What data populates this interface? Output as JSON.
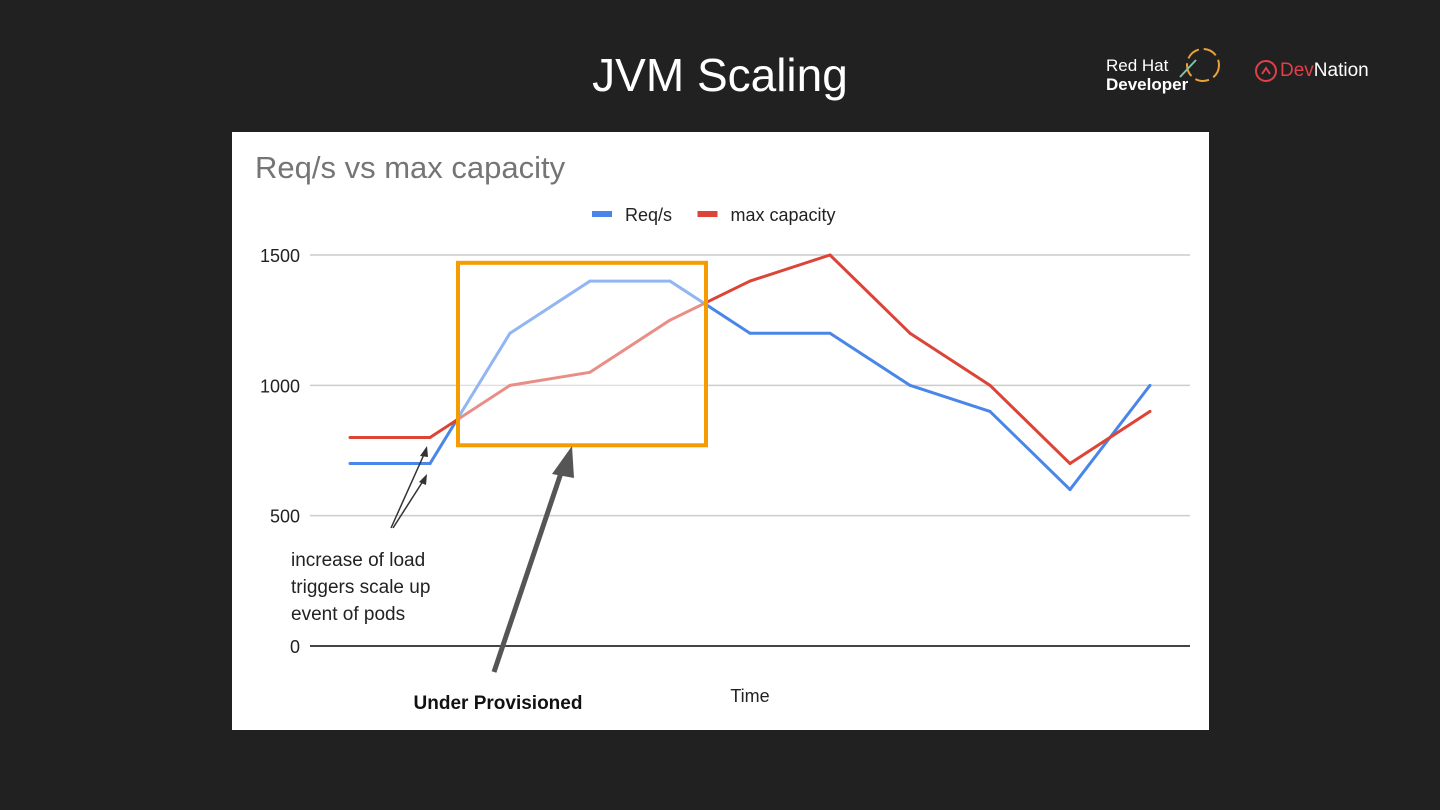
{
  "slide_title": "JVM Scaling",
  "logos": {
    "redhat_line1": "Red Hat",
    "redhat_line2": "Developer",
    "devnation_a": "Dev",
    "devnation_b": "Nation"
  },
  "chart_data": {
    "type": "line",
    "title": "Req/s vs max capacity",
    "xlabel": "Time",
    "ylabel": "",
    "ylim": [
      0,
      1500
    ],
    "yticks": [
      0,
      500,
      1000,
      1500
    ],
    "grid": true,
    "legend": "top",
    "x": [
      1,
      2,
      3,
      4,
      5,
      6,
      7,
      8,
      9,
      10,
      11
    ],
    "series": [
      {
        "name": "Req/s",
        "color": "#4a86e8",
        "values": [
          700,
          700,
          1200,
          1400,
          1400,
          1200,
          1200,
          1000,
          900,
          600,
          1000
        ]
      },
      {
        "name": "max capacity",
        "color": "#db4437",
        "values": [
          800,
          800,
          1000,
          1050,
          1250,
          1400,
          1500,
          1200,
          1000,
          700,
          900
        ]
      }
    ],
    "annotations": {
      "highlight_label": "Under Provisioned",
      "highlight_color": "#f59c00",
      "highlight_x_range": [
        2.35,
        5.45
      ],
      "highlight_y_range": [
        770,
        1470
      ],
      "note": [
        "increase of load",
        "triggers scale up",
        "event of pods"
      ]
    }
  }
}
